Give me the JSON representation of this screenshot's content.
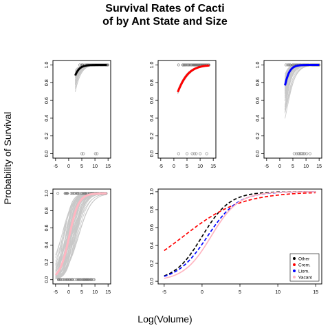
{
  "figure": {
    "title_line1": "Survival Rates of Cacti",
    "title_line2": "of by Ant State and Size",
    "xlabel": "Log(Volume)",
    "ylabel": "Probability of Survival"
  },
  "chart_data": [
    {
      "id": "panel1",
      "type": "line",
      "xlim": [
        -6,
        16
      ],
      "ylim": [
        -0.05,
        1.05
      ],
      "x_ticks": [
        "-5",
        "0",
        "5",
        "10",
        "15"
      ],
      "y_ticks": [
        "0.0",
        "0.2",
        "0.4",
        "0.6",
        "0.8",
        "1.0"
      ],
      "grid": false,
      "color": "#000000",
      "curve": {
        "x0": 2.5,
        "x1": 14.5,
        "a": 0.25,
        "b": 0.7
      },
      "posterior_band": {
        "x0": 2.5,
        "x1": 14.5,
        "a_min": -0.8,
        "a_max": 0.9,
        "b_min": 0.55,
        "b_max": 0.85
      },
      "observed_survived_x_range": [
        4,
        15
      ],
      "observed_died_x": [
        5.0,
        5.6,
        10.2,
        10.8
      ]
    },
    {
      "id": "panel2",
      "type": "line",
      "xlim": [
        -6,
        16
      ],
      "ylim": [
        -0.05,
        1.05
      ],
      "x_ticks": [
        "-5",
        "0",
        "5",
        "10",
        "15"
      ],
      "y_ticks": [
        "0.0",
        "0.2",
        "0.4",
        "0.6",
        "0.8",
        "1.0"
      ],
      "grid": false,
      "color": "#ff0000",
      "curve": {
        "x0": 1.5,
        "x1": 13.5,
        "a": 0.3,
        "b": 0.35
      },
      "posterior_band": {
        "x0": 1.5,
        "x1": 13.5,
        "a_min": 0.2,
        "a_max": 0.45,
        "b_min": 0.32,
        "b_max": 0.38
      },
      "observed_survived_x_range": [
        1.5,
        13.5
      ],
      "observed_died_x": [
        1.8,
        5.0,
        7.0,
        7.8,
        8.5,
        10.0,
        12.5
      ]
    },
    {
      "id": "panel3",
      "type": "line",
      "xlim": [
        -6,
        16
      ],
      "ylim": [
        -0.05,
        1.05
      ],
      "x_ticks": [
        "-5",
        "0",
        "5",
        "10",
        "15"
      ],
      "y_ticks": [
        "0.0",
        "0.2",
        "0.4",
        "0.6",
        "0.8",
        "1.0"
      ],
      "grid": false,
      "color": "#0000ff",
      "curve": {
        "x0": 2.0,
        "x1": 15.0,
        "a": -0.3,
        "b": 0.75
      },
      "posterior_band": {
        "x0": 2.0,
        "x1": 15.0,
        "a_min": -1.6,
        "a_max": 0.4,
        "b_min": 0.5,
        "b_max": 1.1
      },
      "observed_survived_x_range": [
        2,
        15
      ],
      "observed_died_x": [
        5.5,
        6.3,
        7.0,
        7.5,
        8.0,
        8.5,
        9.0,
        9.5,
        10.3,
        11.5
      ]
    },
    {
      "id": "panel4",
      "type": "line",
      "xlim": [
        -6,
        16
      ],
      "ylim": [
        -0.05,
        1.05
      ],
      "x_ticks": [
        "-5",
        "0",
        "5",
        "10",
        "15"
      ],
      "y_ticks": [
        "0.0",
        "0.2",
        "0.4",
        "0.6",
        "0.8",
        "1.0"
      ],
      "grid": false,
      "color": "#ffb6c1",
      "curve": {
        "x0": -5.0,
        "x1": 14.5,
        "a": -0.1,
        "b": 0.55
      },
      "posterior_band": {
        "x0": -5.0,
        "x1": 14.5,
        "a_min": -1.6,
        "a_max": 1.4,
        "b_min": 0.4,
        "b_max": 0.75
      },
      "observed_survived_x_range": [
        -5,
        14.5
      ],
      "observed_died_x_range": [
        -4,
        10
      ]
    },
    {
      "id": "panel5",
      "type": "line",
      "xlim": [
        -5.8,
        15.8
      ],
      "ylim": [
        -0.03,
        1.03
      ],
      "x_ticks": [
        "-5",
        "0",
        "5",
        "10",
        "15"
      ],
      "y_ticks": [
        "0.0",
        "0.2",
        "0.4",
        "0.6",
        "0.8",
        "1.0"
      ],
      "grid": false,
      "legend_position": "bottom-right",
      "series": [
        {
          "name": "Other",
          "color": "#000000",
          "dashed": true,
          "x0": -5,
          "x1": 15,
          "a": 0.0,
          "b": 0.55
        },
        {
          "name": "Crem.",
          "color": "#ff0000",
          "dashed": true,
          "x0": -5,
          "x1": 15,
          "a": 0.65,
          "b": 0.26
        },
        {
          "name": "Liom.",
          "color": "#0000ff",
          "dashed": true,
          "x0": -5,
          "x1": 15,
          "a": -0.35,
          "b": 0.5
        },
        {
          "name": "Vacant",
          "color": "#ffb6c1",
          "dashed": false,
          "x0": -5,
          "x1": 15,
          "a": -0.65,
          "b": 0.55
        }
      ]
    }
  ]
}
